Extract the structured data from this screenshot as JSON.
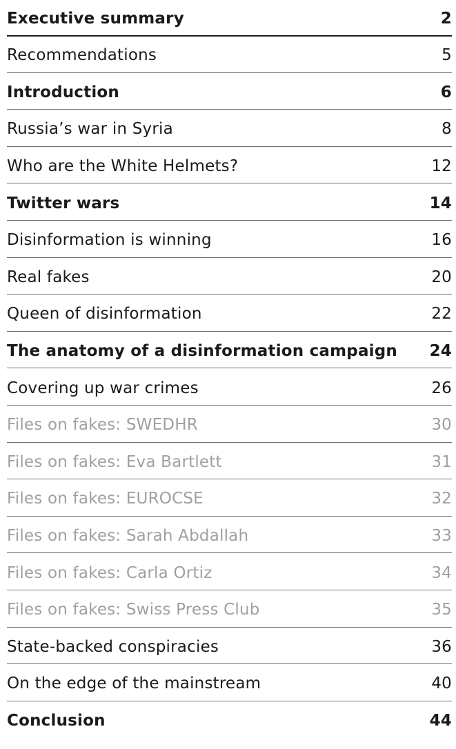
{
  "toc": {
    "entries": [
      {
        "title": "Executive summary",
        "page": "2",
        "style": "bold"
      },
      {
        "title": "Recommendations",
        "page": "5",
        "style": "normal"
      },
      {
        "title": "Introduction",
        "page": "6",
        "style": "bold"
      },
      {
        "title": "Russia’s war in Syria",
        "page": "8",
        "style": "normal"
      },
      {
        "title": "Who are the White Helmets?",
        "page": "12",
        "style": "normal"
      },
      {
        "title": "Twitter wars",
        "page": "14",
        "style": "bold"
      },
      {
        "title": "Disinformation is winning",
        "page": "16",
        "style": "normal"
      },
      {
        "title": "Real fakes",
        "page": "20",
        "style": "normal"
      },
      {
        "title": "Queen of disinformation",
        "page": "22",
        "style": "normal"
      },
      {
        "title": "The anatomy of a disinformation campaign",
        "page": "24",
        "style": "bold"
      },
      {
        "title": "Covering up war crimes",
        "page": "26",
        "style": "normal"
      },
      {
        "title": "Files on fakes: SWEDHR",
        "page": "30",
        "style": "dim"
      },
      {
        "title": "Files on fakes: Eva Bartlett",
        "page": "31",
        "style": "dim"
      },
      {
        "title": "Files on fakes: EUROCSE",
        "page": "32",
        "style": "dim"
      },
      {
        "title": "Files on fakes: Sarah Abdallah",
        "page": "33",
        "style": "dim"
      },
      {
        "title": "Files on fakes: Carla Ortiz",
        "page": "34",
        "style": "dim"
      },
      {
        "title": "Files on fakes: Swiss Press Club",
        "page": "35",
        "style": "dim"
      },
      {
        "title": "State-backed conspiracies",
        "page": "36",
        "style": "normal"
      },
      {
        "title": "On the edge of the mainstream",
        "page": "40",
        "style": "normal"
      },
      {
        "title": "Conclusion",
        "page": "44",
        "style": "bold"
      }
    ]
  }
}
